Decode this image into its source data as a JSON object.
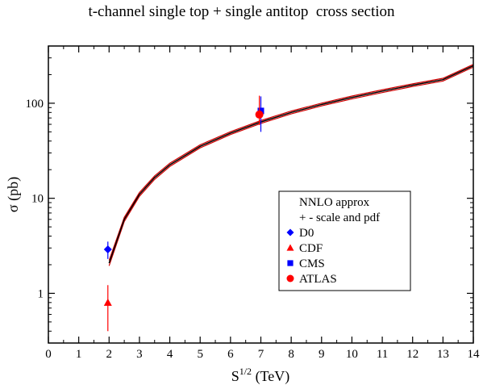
{
  "chart_data": {
    "type": "line",
    "title": "t-channel single top + single antitop  cross section",
    "xlabel_base": "S",
    "xlabel_sup": "1/2",
    "xlabel_unit": " (TeV)",
    "ylabel": "σ (pb)",
    "xlim": [
      0,
      14
    ],
    "ylim": [
      0.3,
      400
    ],
    "y_scale": "log",
    "x_ticks": [
      "0",
      "1",
      "2",
      "3",
      "4",
      "5",
      "6",
      "7",
      "8",
      "9",
      "10",
      "11",
      "12",
      "13",
      "14"
    ],
    "y_ticks": [
      {
        "value": 1,
        "label": "1"
      },
      {
        "value": 10,
        "label": "10"
      },
      {
        "value": 100,
        "label": "100"
      }
    ],
    "series": [
      {
        "name": "NNLO approx",
        "color": "#000000",
        "x": [
          2,
          2.5,
          3,
          3.5,
          4,
          5,
          6,
          7,
          8,
          9,
          10,
          11,
          12,
          13,
          14
        ],
        "y": [
          2.08,
          6.0,
          11.0,
          16.5,
          22.5,
          35.2,
          48.5,
          63.5,
          80.0,
          97.0,
          115.0,
          134.0,
          155.0,
          177.0,
          248.0
        ]
      },
      {
        "name": "+ - scale and pdf",
        "color": "#d00000",
        "band": true,
        "x": [
          2,
          2.5,
          3,
          3.5,
          4,
          5,
          6,
          7,
          8,
          9,
          10,
          11,
          12,
          13,
          14
        ],
        "lower": [
          1.95,
          5.7,
          10.5,
          15.8,
          21.6,
          33.9,
          46.8,
          61.3,
          77.3,
          93.8,
          111.0,
          129.5,
          150.0,
          171.0,
          240.0
        ],
        "upper": [
          2.22,
          6.3,
          11.5,
          17.2,
          23.4,
          36.5,
          50.2,
          65.7,
          82.7,
          100.2,
          119.0,
          138.5,
          160.0,
          183.0,
          256.0
        ]
      }
    ],
    "measurements": [
      {
        "name": "D0",
        "marker": "diamond",
        "color": "#0000ff",
        "x": 1.96,
        "y": 2.9,
        "yerr_low": 2.3,
        "yerr_high": 3.5
      },
      {
        "name": "CDF",
        "marker": "triangle",
        "color": "#ff0000",
        "x": 1.96,
        "y": 0.8,
        "yerr_low": 0.4,
        "yerr_high": 1.22
      },
      {
        "name": "CMS",
        "marker": "square",
        "color": "#0000ff",
        "x": 7.0,
        "y": 83.0,
        "yerr_low": 50.0,
        "yerr_high": 118.0
      },
      {
        "name": "ATLAS",
        "marker": "circle",
        "color": "#ff0000",
        "x": 6.95,
        "y": 76.0,
        "yerr_low": 59.0,
        "yerr_high": 120.0
      }
    ],
    "legend": {
      "placement": "center-right",
      "entries": [
        "NNLO approx",
        "+ - scale and pdf",
        "D0",
        "CDF",
        "CMS",
        "ATLAS"
      ]
    }
  }
}
